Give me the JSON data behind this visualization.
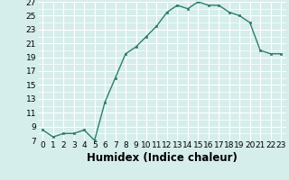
{
  "x": [
    0,
    1,
    2,
    3,
    4,
    5,
    6,
    7,
    8,
    9,
    10,
    11,
    12,
    13,
    14,
    15,
    16,
    17,
    18,
    19,
    20,
    21,
    22,
    23
  ],
  "y": [
    8.5,
    7.5,
    8.0,
    8.0,
    8.5,
    7.0,
    12.5,
    16.0,
    19.5,
    20.5,
    22.0,
    23.5,
    25.5,
    26.5,
    26.0,
    27.0,
    26.5,
    26.5,
    25.5,
    25.0,
    24.0,
    20.0,
    19.5,
    19.5
  ],
  "xlabel": "Humidex (Indice chaleur)",
  "ylim": [
    7,
    27
  ],
  "xlim": [
    -0.5,
    23.5
  ],
  "yticks": [
    7,
    9,
    11,
    13,
    15,
    17,
    19,
    21,
    23,
    25,
    27
  ],
  "xticks": [
    0,
    1,
    2,
    3,
    4,
    5,
    6,
    7,
    8,
    9,
    10,
    11,
    12,
    13,
    14,
    15,
    16,
    17,
    18,
    19,
    20,
    21,
    22,
    23
  ],
  "xtick_labels": [
    "0",
    "1",
    "2",
    "3",
    "4",
    "5",
    "6",
    "7",
    "8",
    "9",
    "10",
    "11",
    "12",
    "13",
    "14",
    "15",
    "16",
    "17",
    "18",
    "19",
    "20",
    "21",
    "22",
    "23"
  ],
  "line_color": "#2e7d6e",
  "marker_color": "#2e7d6e",
  "bg_color": "#d6eeeb",
  "grid_color": "#ffffff",
  "tick_fontsize": 6.5,
  "xlabel_fontsize": 8.5
}
